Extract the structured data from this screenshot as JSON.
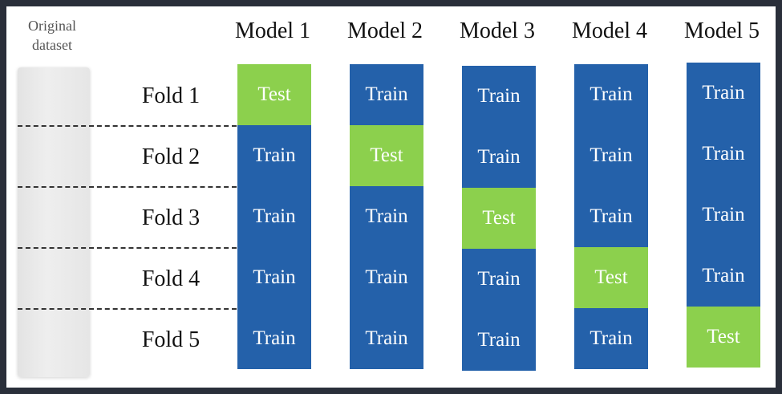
{
  "dataset_label": "Original\ndataset",
  "folds": [
    "Fold 1",
    "Fold 2",
    "Fold 3",
    "Fold 4",
    "Fold 5"
  ],
  "models": [
    {
      "title": "Model 1",
      "cells": [
        "Test",
        "Train",
        "Train",
        "Train",
        "Train"
      ]
    },
    {
      "title": "Model 2",
      "cells": [
        "Train",
        "Test",
        "Train",
        "Train",
        "Train"
      ]
    },
    {
      "title": "Model 3",
      "cells": [
        "Train",
        "Train",
        "Test",
        "Train",
        "Train"
      ]
    },
    {
      "title": "Model 4",
      "cells": [
        "Train",
        "Train",
        "Train",
        "Test",
        "Train"
      ]
    },
    {
      "title": "Model 5",
      "cells": [
        "Train",
        "Train",
        "Train",
        "Train",
        "Test"
      ]
    }
  ],
  "colors": {
    "train": "#2461aa",
    "test": "#8cd04d",
    "background": "#ffffff",
    "outer": "#2a2f3a"
  }
}
